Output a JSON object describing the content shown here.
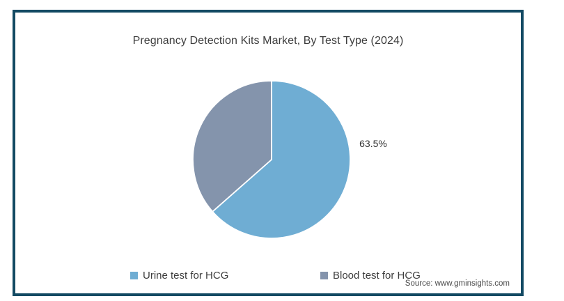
{
  "title": "Pregnancy Detection Kits Market, By Test Type (2024)",
  "source_note": "Source: www.gminsights.com",
  "chart_data": {
    "type": "pie",
    "title": "Pregnancy Detection Kits Market, By Test Type (2024)",
    "start_angle_deg": 0,
    "direction": "clockwise",
    "legend_position": "bottom",
    "slice_separator_color": "#ffffff",
    "slices": [
      {
        "label": "Urine test for HCG",
        "value": 63.5,
        "data_label": "63.5%",
        "color": "#6FADD3"
      },
      {
        "label": "Blood test for HCG",
        "value": 36.5,
        "data_label": "",
        "color": "#8494AC"
      }
    ]
  },
  "colors": {
    "frame_border": "#134a63",
    "background": "#ffffff",
    "title_text": "#3d3d3d",
    "legend_text": "#3d3d3d",
    "data_label_text": "#333333",
    "source_text": "#4a4a4a"
  }
}
